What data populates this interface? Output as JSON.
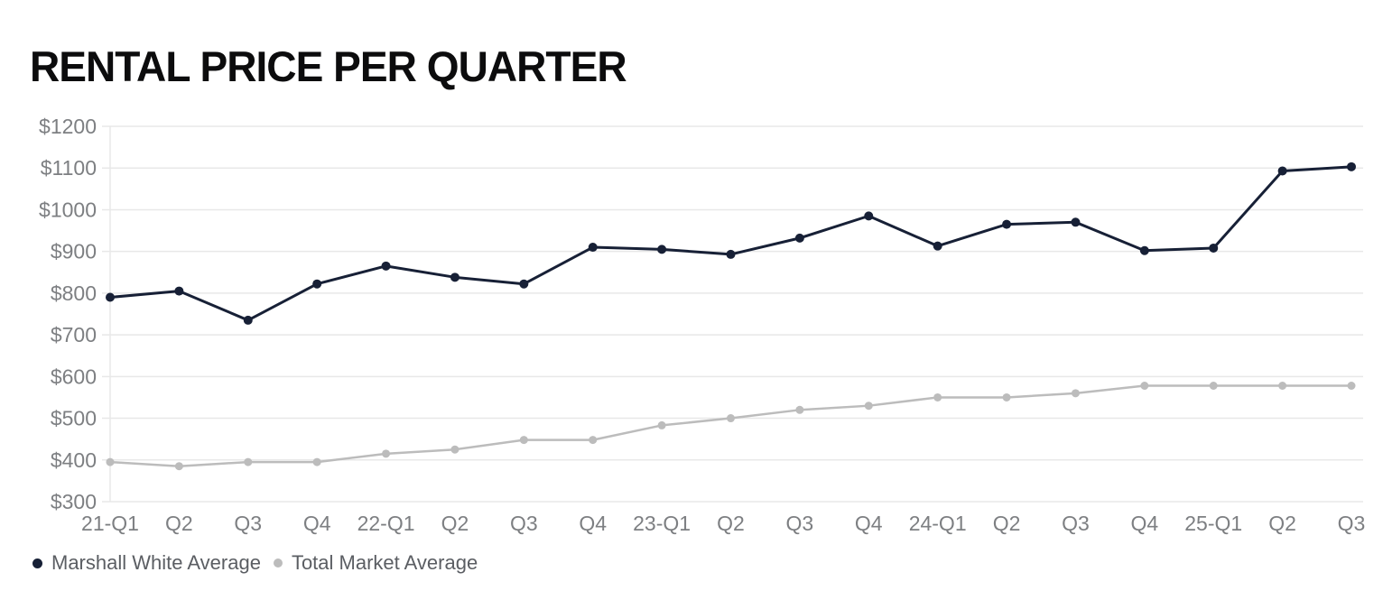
{
  "title": "RENTAL PRICE PER QUARTER",
  "chart_data": {
    "type": "line",
    "title": "RENTAL PRICE PER QUARTER",
    "categories": [
      "21-Q1",
      "Q2",
      "Q3",
      "Q4",
      "22-Q1",
      "Q2",
      "Q3",
      "Q4",
      "23-Q1",
      "Q2",
      "Q3",
      "Q4",
      "24-Q1",
      "Q2",
      "Q3",
      "Q4",
      "25-Q1",
      "Q2",
      "Q3"
    ],
    "series": [
      {
        "name": "Marshall White Average",
        "color": "#172036",
        "values": [
          790,
          805,
          735,
          822,
          865,
          838,
          822,
          910,
          905,
          893,
          932,
          985,
          913,
          965,
          970,
          902,
          908,
          1093,
          1103
        ]
      },
      {
        "name": "Total Market Average",
        "color": "#bcbcbc",
        "values": [
          395,
          385,
          395,
          395,
          415,
          425,
          448,
          448,
          483,
          500,
          520,
          530,
          550,
          550,
          560,
          578,
          578,
          578,
          578
        ]
      }
    ],
    "ylim": [
      300,
      1200
    ],
    "y_ticks": [
      {
        "value": 1200,
        "label": "$1200"
      },
      {
        "value": 1100,
        "label": "$1100"
      },
      {
        "value": 1000,
        "label": "$1000"
      },
      {
        "value": 900,
        "label": "$900"
      },
      {
        "value": 800,
        "label": "$800"
      },
      {
        "value": 700,
        "label": "$700"
      },
      {
        "value": 600,
        "label": "$600"
      },
      {
        "value": 500,
        "label": "$500"
      },
      {
        "value": 400,
        "label": "$400"
      },
      {
        "value": 300,
        "label": "$300"
      }
    ],
    "grid": "horizontal",
    "legend_position": "bottom-left",
    "colors": {
      "grid": "#e8e8e8",
      "axis_label": "#7d7f82",
      "legend_text": "#5b5e63",
      "title": "#0c0c0d"
    }
  }
}
